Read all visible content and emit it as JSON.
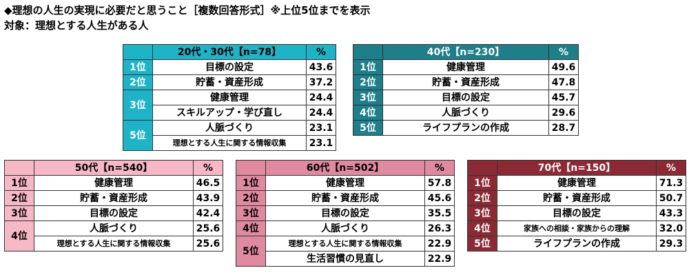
{
  "title": "◆理想の人生の実現に必要だと思うこと［複数回答形式］※上位5位までを表示",
  "subtitle": "対象：理想とする人生がある人",
  "tables": [
    {
      "header": "20代・30代【n=78】",
      "pct": "%",
      "rows": [
        {
          "rank": "1位",
          "item": "目標の設定",
          "value": "43.6"
        },
        {
          "rank": "2位",
          "item": "貯蓄・資産形成",
          "value": "37.2"
        },
        {
          "rank": "3位",
          "item": "健康管理",
          "value": "24.4"
        },
        {
          "item": "スキルアップ・学び直し",
          "value": "24.4"
        },
        {
          "rank": "5位",
          "item": "人脈づくり",
          "value": "23.1"
        },
        {
          "item": "理想とする人生に関する情報収集",
          "value": "23.1"
        }
      ]
    },
    {
      "header": "40代【n=230】",
      "pct": "%",
      "rows": [
        {
          "rank": "1位",
          "item": "健康管理",
          "value": "49.6"
        },
        {
          "rank": "2位",
          "item": "貯蓄・資産形成",
          "value": "47.8"
        },
        {
          "rank": "3位",
          "item": "目標の設定",
          "value": "45.7"
        },
        {
          "rank": "4位",
          "item": "人脈づくり",
          "value": "29.6"
        },
        {
          "rank": "5位",
          "item": "ライフプランの作成",
          "value": "28.7"
        }
      ]
    },
    {
      "header": "50代【n=540】",
      "pct": "%",
      "rows": [
        {
          "rank": "1位",
          "item": "健康管理",
          "value": "46.5"
        },
        {
          "rank": "2位",
          "item": "貯蓄・資産形成",
          "value": "43.9"
        },
        {
          "rank": "3位",
          "item": "目標の設定",
          "value": "42.4"
        },
        {
          "rank": "4位",
          "item": "人脈づくり",
          "value": "25.6"
        },
        {
          "item": "理想とする人生に関する情報収集",
          "value": "25.6"
        }
      ]
    },
    {
      "header": "60代【n=502】",
      "pct": "%",
      "rows": [
        {
          "rank": "1位",
          "item": "健康管理",
          "value": "57.8"
        },
        {
          "rank": "2位",
          "item": "貯蓄・資産形成",
          "value": "45.6"
        },
        {
          "rank": "3位",
          "item": "目標の設定",
          "value": "35.5"
        },
        {
          "rank": "4位",
          "item": "人脈づくり",
          "value": "26.3"
        },
        {
          "rank": "5位",
          "item": "理想とする人生に関する情報収集",
          "value": "22.9"
        },
        {
          "item": "生活習慣の見直し",
          "value": "22.9"
        }
      ]
    },
    {
      "header": "70代【n=150】",
      "pct": "%",
      "rows": [
        {
          "rank": "1位",
          "item": "健康管理",
          "value": "71.3"
        },
        {
          "rank": "2位",
          "item": "貯蓄・資産形成",
          "value": "50.7"
        },
        {
          "rank": "3位",
          "item": "目標の設定",
          "value": "43.3"
        },
        {
          "rank": "4位",
          "item": "家族への相談・家族からの理解",
          "value": "32.0"
        },
        {
          "rank": "5位",
          "item": "ライフプランの作成",
          "value": "29.3"
        }
      ]
    }
  ]
}
